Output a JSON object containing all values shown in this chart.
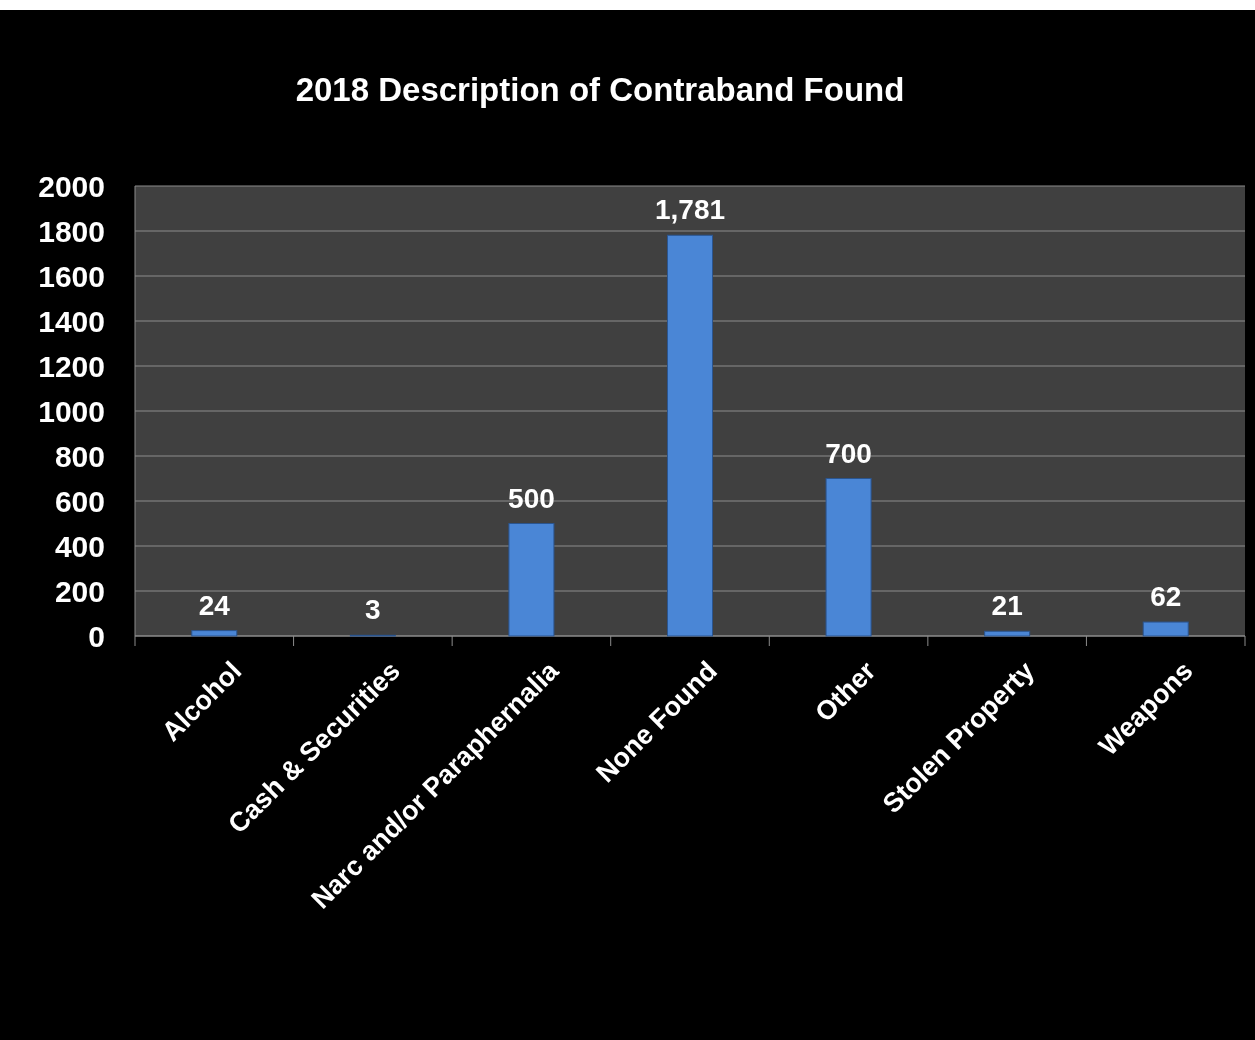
{
  "chart_data": {
    "type": "bar",
    "title": "2018 Description of Contraband Found",
    "categories": [
      "Alcohol",
      "Cash & Securities",
      "Narc and/or Paraphernalia",
      "None Found",
      "Other",
      "Stolen Property",
      "Weapons"
    ],
    "values": [
      24,
      3,
      500,
      1781,
      700,
      21,
      62
    ],
    "value_labels": [
      "24",
      "3",
      "500",
      "1,781",
      "700",
      "21",
      "62"
    ],
    "color": "#4a86d6",
    "ylim": [
      0,
      2000
    ],
    "yticks": [
      0,
      200,
      400,
      600,
      800,
      1000,
      1200,
      1400,
      1600,
      1800,
      2000
    ],
    "grid": "y"
  }
}
